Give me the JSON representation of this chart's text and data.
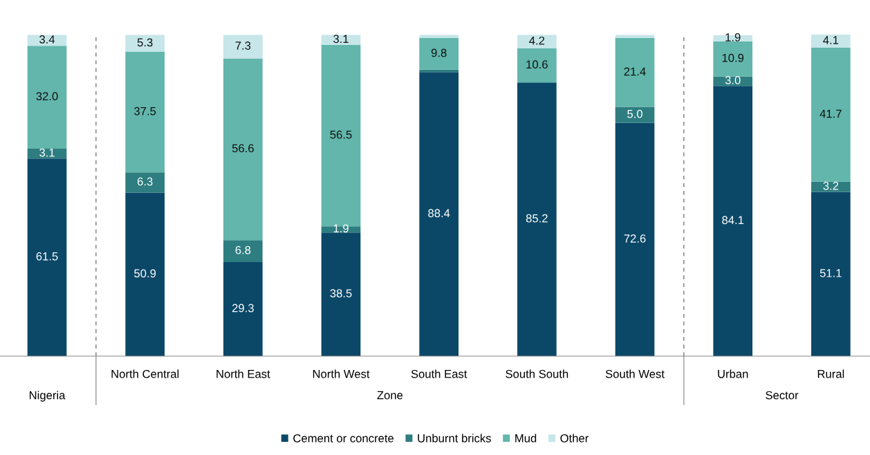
{
  "chart_data": {
    "type": "bar",
    "stacked": true,
    "categories": [
      null,
      "North Central",
      "North East",
      "North West",
      "South East",
      "South South",
      "South West",
      "Urban",
      "Rural"
    ],
    "series": [
      {
        "name": "Cement or concrete",
        "color": "#0b4868",
        "values": [
          61.5,
          50.9,
          29.3,
          38.5,
          88.4,
          85.2,
          72.6,
          84.1,
          51.1
        ],
        "value_labels": [
          "61.5",
          "50.9",
          "29.3",
          "38.5",
          "88.4",
          "85.2",
          "72.6",
          "84.1",
          "51.1"
        ]
      },
      {
        "name": "Unburnt bricks",
        "color": "#2e7d80",
        "values": [
          3.1,
          6.3,
          6.8,
          1.9,
          0.8,
          0,
          5.0,
          3.0,
          3.2
        ],
        "value_labels": [
          "3.1",
          "6.3",
          "6.8",
          "1.9",
          null,
          null,
          "5.0",
          "3.0",
          "3.2"
        ]
      },
      {
        "name": "Mud",
        "color": "#62b6ac",
        "values": [
          32.0,
          37.5,
          56.6,
          56.5,
          9.8,
          10.6,
          21.4,
          10.9,
          41.7
        ],
        "value_labels": [
          "32.0",
          "37.5",
          "56.6",
          "56.5",
          "9.8",
          "10.6",
          "21.4",
          "10.9",
          "41.7"
        ]
      },
      {
        "name": "Other",
        "color": "#c6e6e9",
        "values": [
          3.4,
          5.3,
          7.3,
          3.1,
          1.0,
          4.2,
          1.0,
          1.9,
          4.1
        ],
        "value_labels": [
          "3.4",
          "5.3",
          "7.3",
          "3.1",
          null,
          "4.2",
          null,
          "1.9",
          "4.1"
        ]
      }
    ],
    "annotations": [
      "Nigeria",
      "Zone",
      "Sector"
    ],
    "legend": "bottom",
    "grid": false
  }
}
